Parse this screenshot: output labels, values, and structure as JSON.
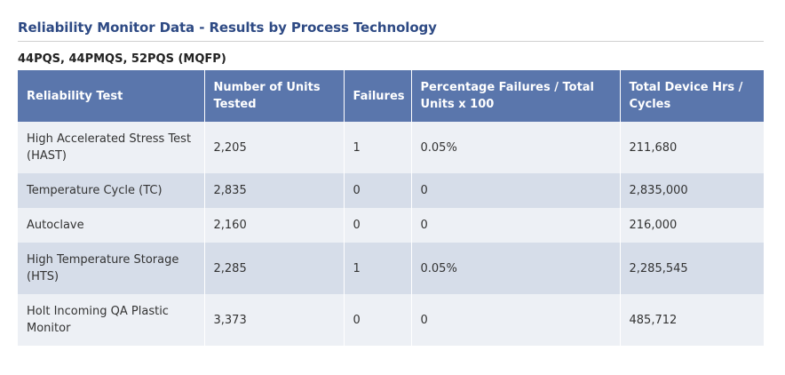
{
  "title": "Reliability Monitor Data - Results by Process Technology",
  "subtitle": "44PQS, 44PMQS, 52PQS (MQFP)",
  "table": {
    "headers": [
      "Reliability Test",
      "Number of Units Tested",
      "Failures",
      "Percentage Failures / Total Units x 100",
      "Total Device Hrs / Cycles"
    ],
    "rows": [
      [
        "High Accelerated Stress Test (HAST)",
        "2,205",
        "1",
        "0.05%",
        "211,680"
      ],
      [
        "Temperature Cycle (TC)",
        "2,835",
        "0",
        "0",
        "2,835,000"
      ],
      [
        "Autoclave",
        "2,160",
        "0",
        "0",
        "216,000"
      ],
      [
        "High Temperature Storage (HTS)",
        "2,285",
        "1",
        "0.05%",
        "2,285,545"
      ],
      [
        "Holt Incoming QA Plastic Monitor",
        "3,373",
        "0",
        "0",
        "485,712"
      ]
    ]
  },
  "colors": {
    "title": "#2e4a84",
    "header_bg": "#5a76ac",
    "row_light": "#edf0f5",
    "row_dark": "#d6dde9"
  }
}
